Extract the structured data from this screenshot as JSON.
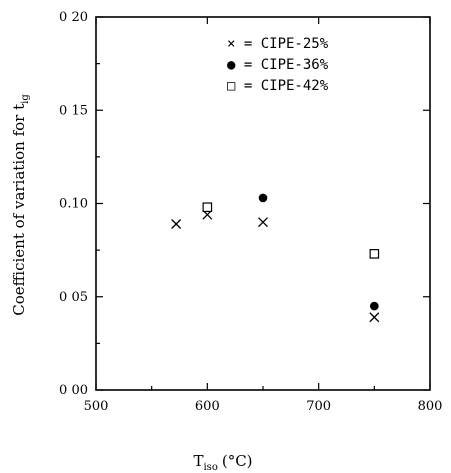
{
  "chart_data": {
    "type": "scatter",
    "title": "",
    "xlabel": "T",
    "xlabel_sub": "iso",
    "xlabel_unit": "(°C)",
    "ylabel": "Coefficient of variation for t",
    "ylabel_sub": "ig",
    "xlim": [
      500,
      800
    ],
    "ylim": [
      0.0,
      0.2
    ],
    "x_ticks": [
      500,
      600,
      700,
      800
    ],
    "x_tick_labels": [
      "500",
      "600",
      "700",
      "800"
    ],
    "y_ticks": [
      0.0,
      0.05,
      0.1,
      0.15,
      0.2
    ],
    "y_tick_labels": [
      "0 00",
      "0 05",
      "0.10",
      "0 15",
      "0 20"
    ],
    "grid": false,
    "legend_position": "top-right",
    "series": [
      {
        "name": "CIPE-25%",
        "legend_label": "× = CIPE-25%",
        "marker": "x",
        "points": [
          [
            572,
            0.089
          ],
          [
            600,
            0.094
          ],
          [
            650,
            0.09
          ],
          [
            750,
            0.039
          ]
        ]
      },
      {
        "name": "CIPE-36%",
        "legend_label": "● = CIPE-36%",
        "marker": "dot",
        "points": [
          [
            650,
            0.103
          ],
          [
            750,
            0.045
          ]
        ]
      },
      {
        "name": "CIPE-42%",
        "legend_label": "□ = CIPE-42%",
        "marker": "square",
        "points": [
          [
            600,
            0.098
          ],
          [
            750,
            0.073
          ]
        ]
      }
    ]
  }
}
